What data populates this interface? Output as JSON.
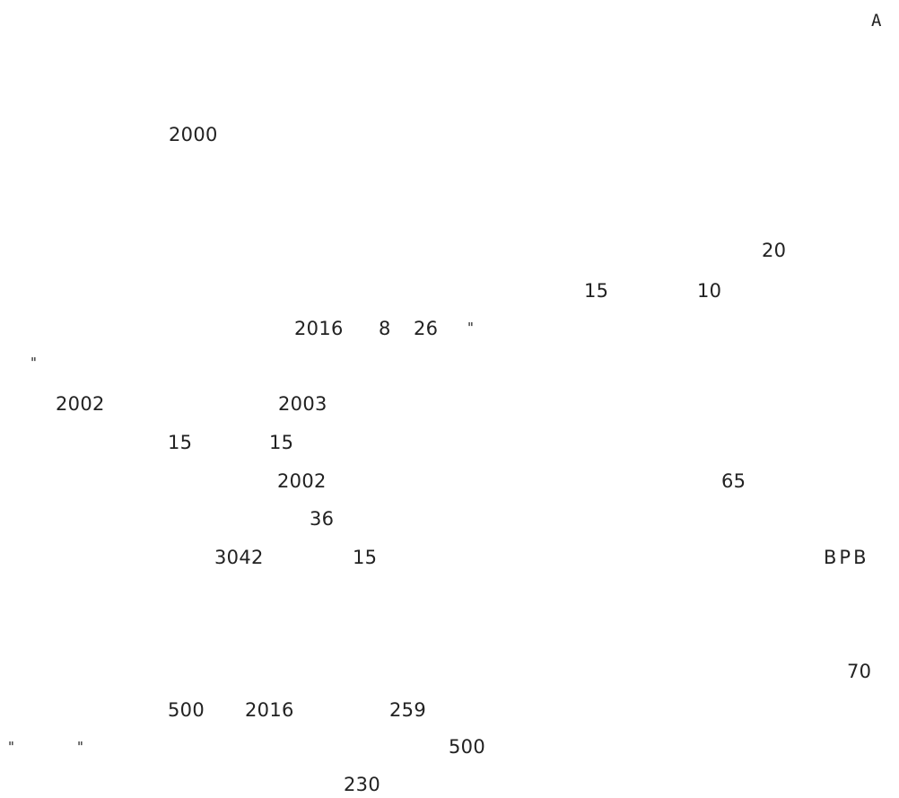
{
  "document": {
    "corner_marker": "A",
    "fragments": {
      "f_2000": "2000",
      "f_20": "20",
      "f_15_a": "15",
      "f_10": "10",
      "f_2016_a": "2016",
      "f_8": "8",
      "f_26": "26",
      "q1": "\"",
      "q2": "\"",
      "f_2002_a": "2002",
      "f_2003": "2003",
      "f_15_b": "15",
      "f_15_c": "15",
      "f_2002_b": "2002",
      "f_65": "65",
      "f_36": "36",
      "f_3042": "3042",
      "f_15_d": "15",
      "f_bpb": "BPB",
      "f_70": "70",
      "f_500_a": "500",
      "f_2016_b": "2016",
      "f_259": "259",
      "q3": "\"",
      "q4": "\"",
      "f_500_b": "500",
      "f_230": "230"
    }
  }
}
